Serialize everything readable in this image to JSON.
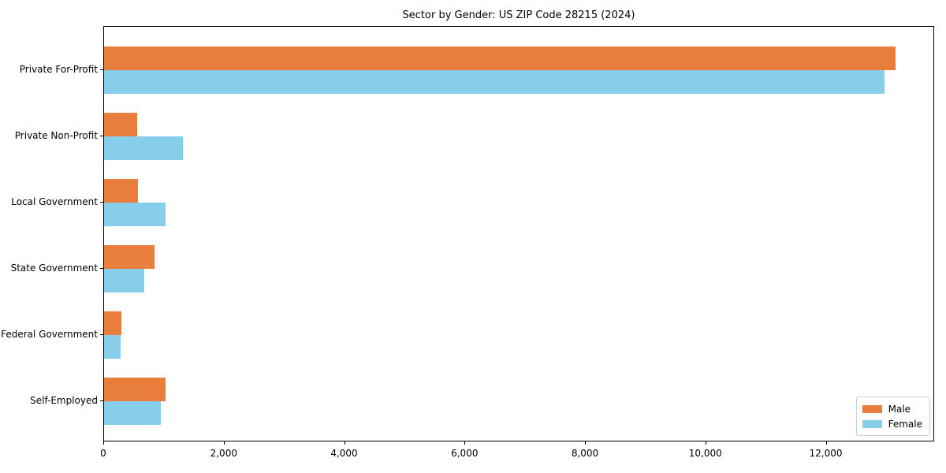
{
  "chart_data": {
    "type": "bar",
    "orientation": "horizontal",
    "title": "Sector by Gender: US ZIP Code 28215 (2024)",
    "categories": [
      "Private For-Profit",
      "Private Non-Profit",
      "Local Government",
      "State Government",
      "Federal Government",
      "Self-Employed"
    ],
    "series": [
      {
        "name": "Male",
        "color": "#e97e3c",
        "values": [
          13140,
          550,
          560,
          840,
          290,
          1020
        ]
      },
      {
        "name": "Female",
        "color": "#87ceeb",
        "values": [
          12960,
          1310,
          1020,
          670,
          275,
          940
        ]
      }
    ],
    "xlabel": "",
    "ylabel": "",
    "xlim": [
      0,
      13800
    ],
    "xticks": [
      {
        "value": 0,
        "label": "0"
      },
      {
        "value": 2000,
        "label": "2,000"
      },
      {
        "value": 4000,
        "label": "4,000"
      },
      {
        "value": 6000,
        "label": "6,000"
      },
      {
        "value": 8000,
        "label": "8,000"
      },
      {
        "value": 10000,
        "label": "10,000"
      },
      {
        "value": 12000,
        "label": "12,000"
      }
    ],
    "grid": false,
    "legend": {
      "position": "lower right",
      "entries": [
        "Male",
        "Female"
      ]
    },
    "colors": {
      "background": "#ffffff",
      "spine": "#000000",
      "text": "#000000",
      "legend_border": "#cccccc"
    }
  }
}
